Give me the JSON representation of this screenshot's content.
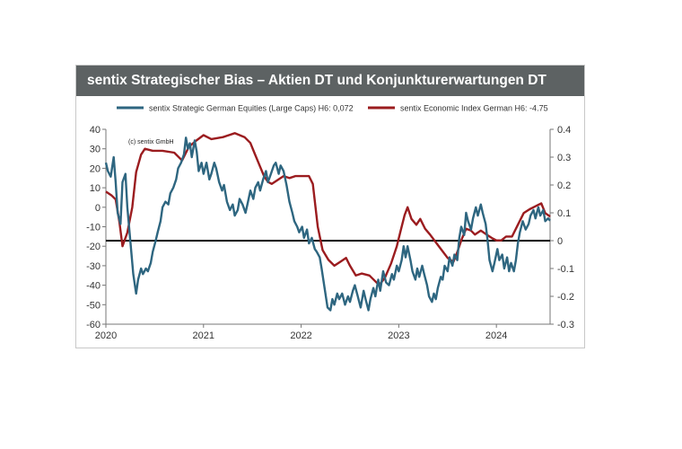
{
  "chart_data": {
    "type": "line",
    "title": "sentix Strategischer Bias – Aktien DT und Konjunkturerwartungen DT",
    "copyright": "(c) sentix GmbH",
    "x_range": [
      2020.0,
      2024.55
    ],
    "x_ticks": [
      "2020",
      "2021",
      "2022",
      "2023",
      "2024"
    ],
    "y_left": {
      "range": [
        -60,
        40
      ],
      "ticks": [
        "40",
        "30",
        "20",
        "10",
        "0",
        "-10",
        "-20",
        "-30",
        "-40",
        "-50",
        "-60"
      ]
    },
    "y_right": {
      "range": [
        -0.3,
        0.4
      ],
      "ticks": [
        "0.4",
        "0.3",
        "0.2",
        "0.1",
        "0",
        "-0.1",
        "-0.2",
        "-0.3"
      ]
    },
    "zero_line_right": 0,
    "series": [
      {
        "name": "sentix Strategic German Equities (Large Caps) H6: 0,072",
        "axis": "right",
        "color": "#2e6680",
        "points": [
          [
            2020.0,
            0.28
          ],
          [
            2020.02,
            0.25
          ],
          [
            2020.05,
            0.23
          ],
          [
            2020.08,
            0.3
          ],
          [
            2020.1,
            0.21
          ],
          [
            2020.12,
            0.1
          ],
          [
            2020.15,
            0.06
          ],
          [
            2020.17,
            0.21
          ],
          [
            2020.2,
            0.24
          ],
          [
            2020.22,
            0.12
          ],
          [
            2020.25,
            0.0
          ],
          [
            2020.28,
            -0.12
          ],
          [
            2020.31,
            -0.19
          ],
          [
            2020.33,
            -0.14
          ],
          [
            2020.36,
            -0.1
          ],
          [
            2020.38,
            -0.12
          ],
          [
            2020.41,
            -0.1
          ],
          [
            2020.43,
            -0.11
          ],
          [
            2020.46,
            -0.08
          ],
          [
            2020.48,
            -0.04
          ],
          [
            2020.51,
            0.0
          ],
          [
            2020.53,
            0.03
          ],
          [
            2020.56,
            0.07
          ],
          [
            2020.58,
            0.12
          ],
          [
            2020.61,
            0.14
          ],
          [
            2020.64,
            0.13
          ],
          [
            2020.66,
            0.17
          ],
          [
            2020.69,
            0.19
          ],
          [
            2020.72,
            0.22
          ],
          [
            2020.74,
            0.26
          ],
          [
            2020.77,
            0.28
          ],
          [
            2020.8,
            0.31
          ],
          [
            2020.82,
            0.37
          ],
          [
            2020.84,
            0.33
          ],
          [
            2020.86,
            0.35
          ],
          [
            2020.88,
            0.3
          ],
          [
            2020.91,
            0.36
          ],
          [
            2020.93,
            0.32
          ],
          [
            2020.95,
            0.25
          ],
          [
            2020.98,
            0.28
          ],
          [
            2021.0,
            0.24
          ],
          [
            2021.03,
            0.28
          ],
          [
            2021.06,
            0.22
          ],
          [
            2021.08,
            0.24
          ],
          [
            2021.11,
            0.28
          ],
          [
            2021.13,
            0.26
          ],
          [
            2021.16,
            0.21
          ],
          [
            2021.19,
            0.18
          ],
          [
            2021.21,
            0.2
          ],
          [
            2021.24,
            0.14
          ],
          [
            2021.27,
            0.11
          ],
          [
            2021.3,
            0.13
          ],
          [
            2021.32,
            0.09
          ],
          [
            2021.35,
            0.11
          ],
          [
            2021.37,
            0.15
          ],
          [
            2021.4,
            0.13
          ],
          [
            2021.43,
            0.1
          ],
          [
            2021.45,
            0.13
          ],
          [
            2021.48,
            0.18
          ],
          [
            2021.51,
            0.15
          ],
          [
            2021.53,
            0.19
          ],
          [
            2021.56,
            0.21
          ],
          [
            2021.58,
            0.18
          ],
          [
            2021.61,
            0.22
          ],
          [
            2021.64,
            0.25
          ],
          [
            2021.66,
            0.21
          ],
          [
            2021.69,
            0.24
          ],
          [
            2021.72,
            0.27
          ],
          [
            2021.74,
            0.28
          ],
          [
            2021.77,
            0.24
          ],
          [
            2021.79,
            0.27
          ],
          [
            2021.82,
            0.25
          ],
          [
            2021.85,
            0.2
          ],
          [
            2021.88,
            0.14
          ],
          [
            2021.91,
            0.1
          ],
          [
            2021.93,
            0.07
          ],
          [
            2021.96,
            0.05
          ],
          [
            2021.98,
            0.03
          ],
          [
            2022.01,
            0.05
          ],
          [
            2022.03,
            0.01
          ],
          [
            2022.06,
            0.04
          ],
          [
            2022.08,
            -0.01
          ],
          [
            2022.11,
            0.01
          ],
          [
            2022.14,
            -0.03
          ],
          [
            2022.16,
            -0.04
          ],
          [
            2022.19,
            -0.06
          ],
          [
            2022.21,
            -0.1
          ],
          [
            2022.24,
            -0.17
          ],
          [
            2022.27,
            -0.24
          ],
          [
            2022.3,
            -0.25
          ],
          [
            2022.32,
            -0.21
          ],
          [
            2022.34,
            -0.23
          ],
          [
            2022.37,
            -0.19
          ],
          [
            2022.39,
            -0.21
          ],
          [
            2022.42,
            -0.19
          ],
          [
            2022.45,
            -0.23
          ],
          [
            2022.48,
            -0.2
          ],
          [
            2022.5,
            -0.22
          ],
          [
            2022.53,
            -0.18
          ],
          [
            2022.55,
            -0.16
          ],
          [
            2022.58,
            -0.2
          ],
          [
            2022.61,
            -0.24
          ],
          [
            2022.64,
            -0.18
          ],
          [
            2022.66,
            -0.21
          ],
          [
            2022.69,
            -0.25
          ],
          [
            2022.71,
            -0.21
          ],
          [
            2022.74,
            -0.17
          ],
          [
            2022.76,
            -0.2
          ],
          [
            2022.79,
            -0.14
          ],
          [
            2022.81,
            -0.18
          ],
          [
            2022.84,
            -0.11
          ],
          [
            2022.87,
            -0.15
          ],
          [
            2022.9,
            -0.16
          ],
          [
            2022.93,
            -0.12
          ],
          [
            2022.95,
            -0.14
          ],
          [
            2022.98,
            -0.09
          ],
          [
            2023.0,
            -0.11
          ],
          [
            2023.03,
            -0.07
          ],
          [
            2023.05,
            -0.02
          ],
          [
            2023.07,
            -0.06
          ],
          [
            2023.09,
            -0.02
          ],
          [
            2023.12,
            -0.07
          ],
          [
            2023.14,
            -0.11
          ],
          [
            2023.17,
            -0.14
          ],
          [
            2023.19,
            -0.1
          ],
          [
            2023.21,
            -0.13
          ],
          [
            2023.24,
            -0.09
          ],
          [
            2023.26,
            -0.12
          ],
          [
            2023.29,
            -0.16
          ],
          [
            2023.31,
            -0.2
          ],
          [
            2023.34,
            -0.22
          ],
          [
            2023.36,
            -0.19
          ],
          [
            2023.38,
            -0.21
          ],
          [
            2023.4,
            -0.17
          ],
          [
            2023.43,
            -0.13
          ],
          [
            2023.45,
            -0.14
          ],
          [
            2023.47,
            -0.09
          ],
          [
            2023.5,
            -0.11
          ],
          [
            2023.52,
            -0.06
          ],
          [
            2023.55,
            -0.09
          ],
          [
            2023.57,
            -0.05
          ],
          [
            2023.6,
            -0.07
          ],
          [
            2023.62,
            0.01
          ],
          [
            2023.64,
            0.05
          ],
          [
            2023.67,
            0.02
          ],
          [
            2023.69,
            0.1
          ],
          [
            2023.71,
            0.07
          ],
          [
            2023.74,
            0.04
          ],
          [
            2023.76,
            0.08
          ],
          [
            2023.79,
            0.12
          ],
          [
            2023.81,
            0.09
          ],
          [
            2023.84,
            0.13
          ],
          [
            2023.86,
            0.1
          ],
          [
            2023.89,
            0.06
          ],
          [
            2023.91,
            0.0
          ],
          [
            2023.93,
            -0.07
          ],
          [
            2023.96,
            -0.11
          ],
          [
            2023.98,
            -0.08
          ],
          [
            2024.01,
            -0.03
          ],
          [
            2024.03,
            -0.07
          ],
          [
            2024.06,
            -0.05
          ],
          [
            2024.08,
            -0.1
          ],
          [
            2024.11,
            -0.06
          ],
          [
            2024.13,
            -0.11
          ],
          [
            2024.15,
            -0.08
          ],
          [
            2024.18,
            -0.11
          ],
          [
            2024.2,
            -0.07
          ],
          [
            2024.22,
            -0.01
          ],
          [
            2024.24,
            0.03
          ],
          [
            2024.27,
            0.07
          ],
          [
            2024.3,
            0.04
          ],
          [
            2024.33,
            0.06
          ],
          [
            2024.35,
            0.09
          ],
          [
            2024.38,
            0.11
          ],
          [
            2024.4,
            0.08
          ],
          [
            2024.43,
            0.12
          ],
          [
            2024.45,
            0.09
          ],
          [
            2024.48,
            0.11
          ],
          [
            2024.5,
            0.07
          ],
          [
            2024.53,
            0.08
          ],
          [
            2024.55,
            0.072
          ]
        ]
      },
      {
        "name": "sentix Economic Index German H6: -4.75",
        "axis": "left",
        "color": "#9b1c1f",
        "points": [
          [
            2020.0,
            8
          ],
          [
            2020.06,
            6
          ],
          [
            2020.1,
            4
          ],
          [
            2020.14,
            -8
          ],
          [
            2020.17,
            -20
          ],
          [
            2020.22,
            -13
          ],
          [
            2020.27,
            0
          ],
          [
            2020.31,
            18
          ],
          [
            2020.36,
            27
          ],
          [
            2020.4,
            30
          ],
          [
            2020.48,
            29
          ],
          [
            2020.58,
            29
          ],
          [
            2020.7,
            28
          ],
          [
            2020.78,
            24
          ],
          [
            2020.85,
            31
          ],
          [
            2020.92,
            34
          ],
          [
            2021.0,
            37
          ],
          [
            2021.08,
            35
          ],
          [
            2021.2,
            36
          ],
          [
            2021.32,
            38
          ],
          [
            2021.42,
            36
          ],
          [
            2021.48,
            33
          ],
          [
            2021.52,
            28
          ],
          [
            2021.57,
            22
          ],
          [
            2021.62,
            16
          ],
          [
            2021.66,
            13
          ],
          [
            2021.7,
            12
          ],
          [
            2021.76,
            14
          ],
          [
            2021.82,
            16
          ],
          [
            2021.88,
            15
          ],
          [
            2021.94,
            16
          ],
          [
            2022.0,
            16
          ],
          [
            2022.04,
            16
          ],
          [
            2022.08,
            16
          ],
          [
            2022.12,
            12
          ],
          [
            2022.17,
            -10
          ],
          [
            2022.22,
            -22
          ],
          [
            2022.28,
            -27
          ],
          [
            2022.34,
            -30
          ],
          [
            2022.4,
            -28
          ],
          [
            2022.46,
            -26
          ],
          [
            2022.5,
            -30
          ],
          [
            2022.56,
            -35
          ],
          [
            2022.62,
            -34
          ],
          [
            2022.7,
            -35
          ],
          [
            2022.76,
            -38
          ],
          [
            2022.8,
            -40
          ],
          [
            2022.86,
            -36
          ],
          [
            2022.92,
            -29
          ],
          [
            2022.98,
            -20
          ],
          [
            2023.02,
            -12
          ],
          [
            2023.06,
            -4
          ],
          [
            2023.09,
            0
          ],
          [
            2023.13,
            -6
          ],
          [
            2023.18,
            -9
          ],
          [
            2023.22,
            -6
          ],
          [
            2023.27,
            -11
          ],
          [
            2023.32,
            -14
          ],
          [
            2023.38,
            -18
          ],
          [
            2023.44,
            -22
          ],
          [
            2023.5,
            -26
          ],
          [
            2023.56,
            -28
          ],
          [
            2023.6,
            -23
          ],
          [
            2023.64,
            -17
          ],
          [
            2023.69,
            -11
          ],
          [
            2023.74,
            -12
          ],
          [
            2023.78,
            -14
          ],
          [
            2023.84,
            -12
          ],
          [
            2023.9,
            -14
          ],
          [
            2023.96,
            -16
          ],
          [
            2024.0,
            -17
          ],
          [
            2024.05,
            -17
          ],
          [
            2024.1,
            -15
          ],
          [
            2024.16,
            -15
          ],
          [
            2024.22,
            -9
          ],
          [
            2024.28,
            -3
          ],
          [
            2024.34,
            -1
          ],
          [
            2024.38,
            0
          ],
          [
            2024.42,
            1
          ],
          [
            2024.46,
            2
          ],
          [
            2024.5,
            -3
          ],
          [
            2024.55,
            -4.75
          ]
        ]
      }
    ]
  }
}
